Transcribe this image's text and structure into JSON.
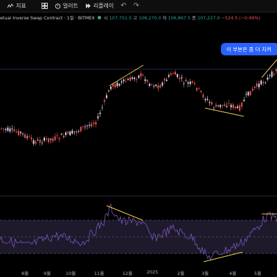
{
  "toolbar": {
    "indicators_label": "지표",
    "alerts_label": "얼러트",
    "replay_label": "리플레이"
  },
  "legend": {
    "title": "etual Inverse Swap Contract · 1일 · BITMEX",
    "open_label": "시",
    "open_value": "107,751.5",
    "high_label": "고",
    "high_value": "108,270.0",
    "low_label": "저",
    "low_value": "106,867.5",
    "close_label": "종",
    "close_value": "107,227.0",
    "change": "−524.5 (−0.49%)"
  },
  "note": {
    "text": "이 부분은 좀 더 지켜"
  },
  "xaxis": {
    "labels": [
      "8월",
      "9월",
      "10월",
      "11월",
      "12월",
      "2025",
      "2월",
      "3월",
      "4월",
      "5월"
    ]
  },
  "colors": {
    "up": "#26a69a",
    "down": "#ef5350",
    "candle_up": "#d8d8e8",
    "candle_down": "#ef5350",
    "trendline": "#f5d142",
    "rsi_line": "#7e57c2",
    "note_bg": "#2962ff"
  }
}
